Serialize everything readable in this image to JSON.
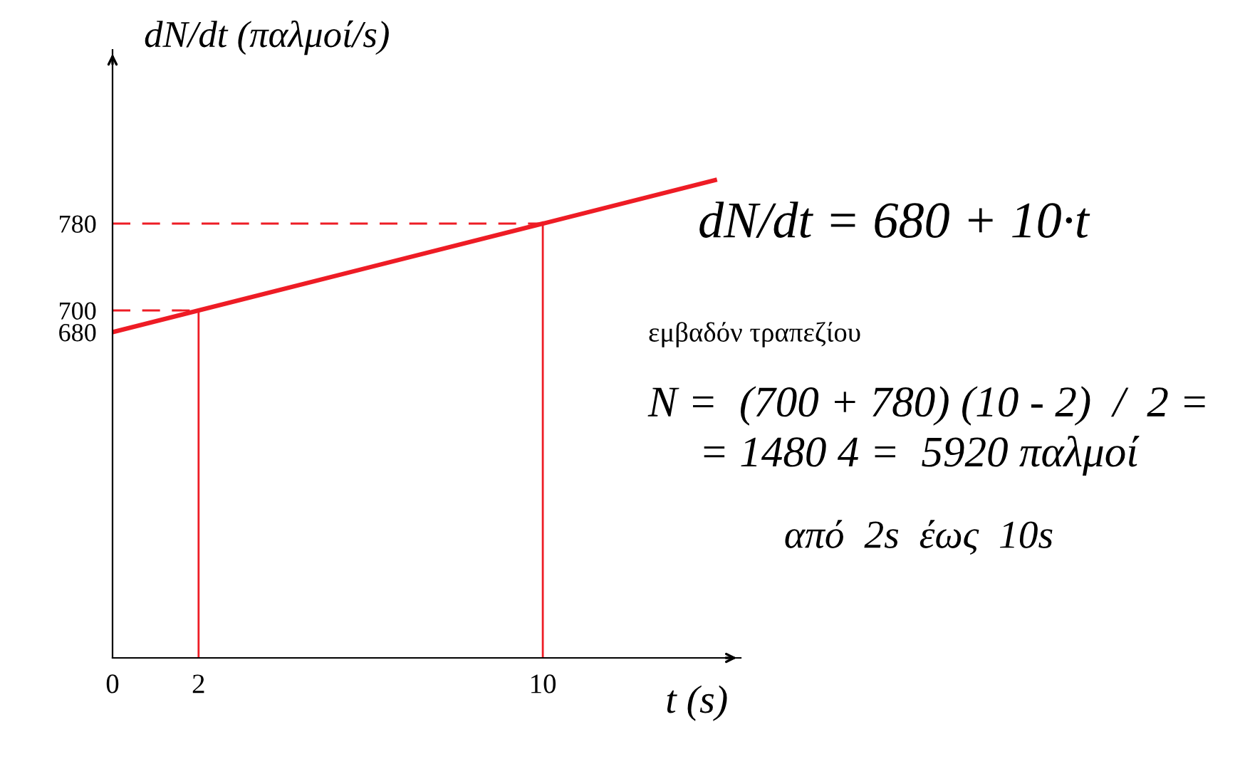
{
  "chart_data": {
    "type": "line",
    "xlabel": "t (s)",
    "ylabel": "dN/dt (παλμοί/s)",
    "series": [
      {
        "color": "#ee1c25",
        "x": [
          0,
          14
        ],
        "values": [
          680,
          820
        ]
      }
    ],
    "xlim": [
      0,
      14.6
    ],
    "ylim": [
      380,
      940
    ],
    "xticks": [
      0,
      2,
      10
    ],
    "yticks": [
      680,
      700,
      780
    ],
    "grid": false,
    "marker": "none",
    "line_style": "solid",
    "ref_lines": [
      {
        "axis": "x",
        "value": 2,
        "color": "#ee1c25",
        "line_style": "solid"
      },
      {
        "axis": "x",
        "value": 10,
        "color": "#ee1c25",
        "line_style": "solid"
      },
      {
        "axis": "y",
        "value": 700,
        "color": "#ee1c25",
        "line_style": "dashed"
      },
      {
        "axis": "y",
        "value": 780,
        "color": "#ee1c25",
        "line_style": "dashed"
      }
    ],
    "annotations": [
      "dN/dt = 680 + 10·t",
      "εμβαδόν τραπεζίου",
      "N =  (700 + 780) (10 - 2)  /  2 =",
      "= 1480 4 =  5920 παλμοί",
      "από  2s  έως  10s"
    ]
  }
}
